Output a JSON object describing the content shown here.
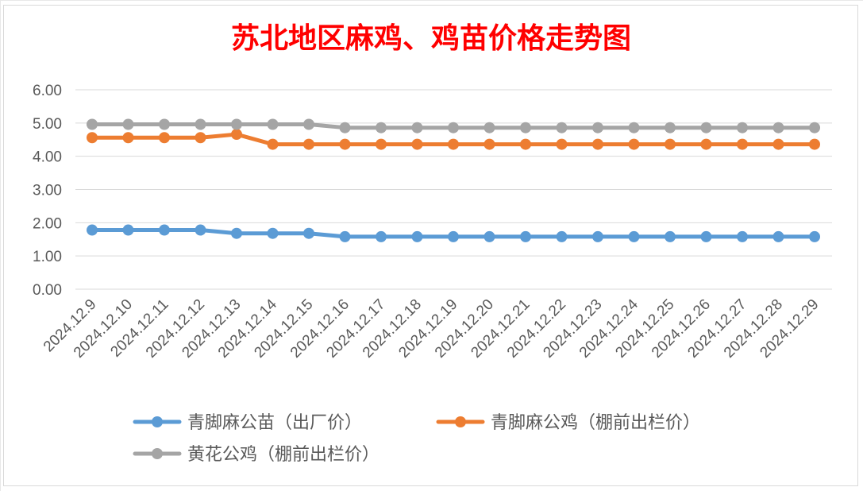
{
  "chart_data": {
    "type": "line",
    "title": "苏北地区麻鸡、鸡苗价格走势图",
    "title_color": "#ff0000",
    "x": [
      "2024.12.9",
      "2024.12.10",
      "2024.12.11",
      "2024.12.12",
      "2024.12.13",
      "2024.12.14",
      "2024.12.15",
      "2024.12.16",
      "2024.12.17",
      "2024.12.18",
      "2024.12.19",
      "2024.12.20",
      "2024.12.21",
      "2024.12.22",
      "2024.12.23",
      "2024.12.24",
      "2024.12.25",
      "2024.12.26",
      "2024.12.27",
      "2024.12.28",
      "2024.12.29"
    ],
    "yticks": [
      "0.00",
      "1.00",
      "2.00",
      "3.00",
      "4.00",
      "5.00",
      "6.00"
    ],
    "ylim": [
      0,
      6
    ],
    "grid": true,
    "legend_position": "bottom",
    "series": [
      {
        "name": "青脚麻公苗（出厂价）",
        "color": "#5b9bd5",
        "values": [
          1.78,
          1.78,
          1.78,
          1.78,
          1.68,
          1.68,
          1.68,
          1.58,
          1.58,
          1.58,
          1.58,
          1.58,
          1.58,
          1.58,
          1.58,
          1.58,
          1.58,
          1.58,
          1.58,
          1.58,
          1.58
        ]
      },
      {
        "name": "青脚麻公鸡（棚前出栏价）",
        "color": "#ed7d31",
        "values": [
          4.56,
          4.56,
          4.56,
          4.56,
          4.66,
          4.36,
          4.36,
          4.36,
          4.36,
          4.36,
          4.36,
          4.36,
          4.36,
          4.36,
          4.36,
          4.36,
          4.36,
          4.36,
          4.36,
          4.36,
          4.36
        ]
      },
      {
        "name": "黄花公鸡（棚前出栏价）",
        "color": "#a5a5a5",
        "values": [
          4.96,
          4.96,
          4.96,
          4.96,
          4.96,
          4.96,
          4.96,
          4.86,
          4.86,
          4.86,
          4.86,
          4.86,
          4.86,
          4.86,
          4.86,
          4.86,
          4.86,
          4.86,
          4.86,
          4.86,
          4.86
        ]
      }
    ]
  }
}
